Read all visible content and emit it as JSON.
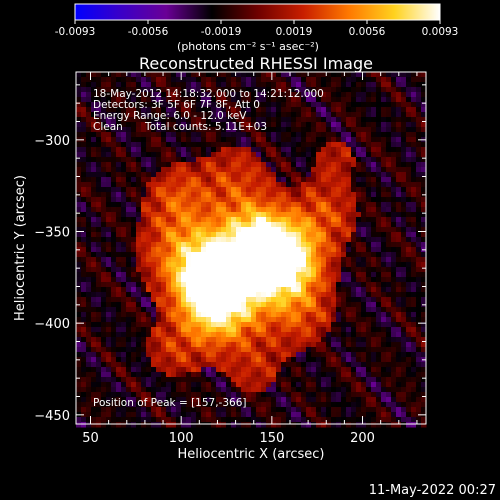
{
  "chart_data": {
    "type": "heatmap",
    "title": "Reconstructed RHESSI Image",
    "xlabel": "Heliocentric X (arcsec)",
    "ylabel": "Heliocentric Y (arcsec)",
    "xlim": [
      42,
      235
    ],
    "ylim": [
      -455,
      -263
    ],
    "x_ticks": [
      50,
      100,
      150,
      200
    ],
    "y_ticks": [
      -300,
      -350,
      -400,
      -450
    ],
    "colorbar": {
      "min": -0.0093,
      "max": 0.0093,
      "ticks": [
        "-0.0093",
        "-0.0056",
        "-0.0019",
        "0.0019",
        "0.0056",
        "0.0093"
      ],
      "units": "(photons cm⁻² s⁻¹ asec⁻²)",
      "colormap": [
        "#0000ff",
        "#3a00c8",
        "#6a0096",
        "#000000",
        "#6e0000",
        "#c81e00",
        "#ff7800",
        "#ffd21e",
        "#ffffff"
      ]
    },
    "annotations": {
      "line1": "18-May-2012 14:18:32.000 to 14:21:12.000",
      "line2": "Detectors: 3F 5F 6F 7F 8F, Att 0",
      "line3": "Energy Range: 6.0 - 12.0 keV",
      "line4a": "Clean",
      "line4b": "Total counts: 5.11E+03",
      "peak": "Position of Peak = [157,-366]"
    },
    "peak": {
      "x": 157,
      "y": -366
    },
    "footer_date": "11-May-2022 00:27"
  }
}
